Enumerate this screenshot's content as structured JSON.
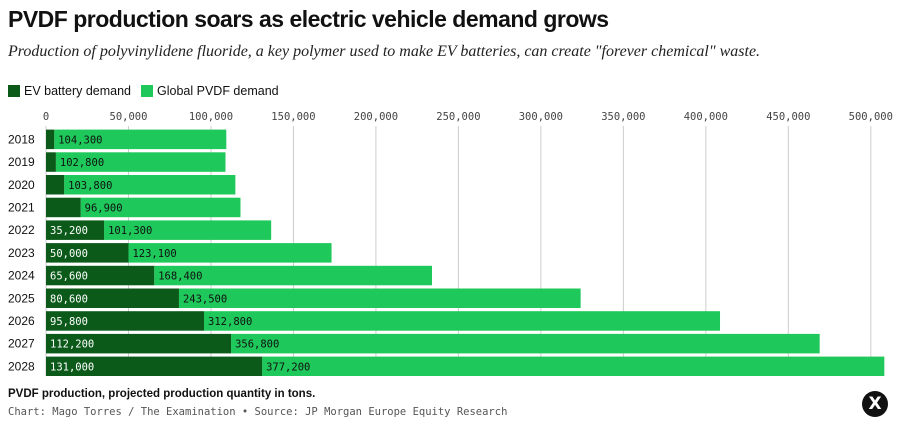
{
  "header": {
    "title": "PVDF production soars as electric vehicle demand grows",
    "subtitle": "Production of polyvinylidene fluoride, a key polymer used to make EV batteries, can create \"forever chemical\" waste."
  },
  "footer": {
    "note": "PVDF production, projected production quantity in tons.",
    "credit": "Chart: Mago Torres / The Examination • Source: JP Morgan Europe Equity Research",
    "logo_text": "X"
  },
  "colors": {
    "ev": "#0c5a1a",
    "global": "#1fc85a",
    "axis_text": "#444444",
    "gridline": "#cccccc"
  },
  "chart_data": {
    "type": "bar",
    "orientation": "horizontal",
    "stacked": true,
    "categories": [
      "2018",
      "2019",
      "2020",
      "2021",
      "2022",
      "2023",
      "2024",
      "2025",
      "2026",
      "2027",
      "2028"
    ],
    "series": [
      {
        "name": "EV battery demand",
        "values": [
          5000,
          6000,
          11000,
          21000,
          35200,
          50000,
          65600,
          80600,
          95800,
          112200,
          131000
        ],
        "labels": [
          "",
          "",
          "",
          "",
          "35,200",
          "50,000",
          "65,600",
          "80,600",
          "95,800",
          "112,200",
          "131,000"
        ]
      },
      {
        "name": "Global PVDF demand",
        "values": [
          104300,
          102800,
          103800,
          96900,
          101300,
          123100,
          168400,
          243500,
          312800,
          356800,
          377200
        ],
        "labels": [
          "104,300",
          "102,800",
          "103,800",
          "96,900",
          "101,300",
          "123,100",
          "168,400",
          "243,500",
          "312,800",
          "356,800",
          "377,200"
        ]
      }
    ],
    "xticks": [
      0,
      50000,
      100000,
      150000,
      200000,
      250000,
      300000,
      350000,
      400000,
      450000,
      500000
    ],
    "xtick_labels": [
      "0",
      "50,000",
      "100,000",
      "150,000",
      "200,000",
      "250,000",
      "300,000",
      "350,000",
      "400,000",
      "450,000",
      "500,000"
    ],
    "xlim": [
      0,
      508000
    ],
    "xaxis_position": "top",
    "legend_position": "top-left",
    "grid": true
  }
}
